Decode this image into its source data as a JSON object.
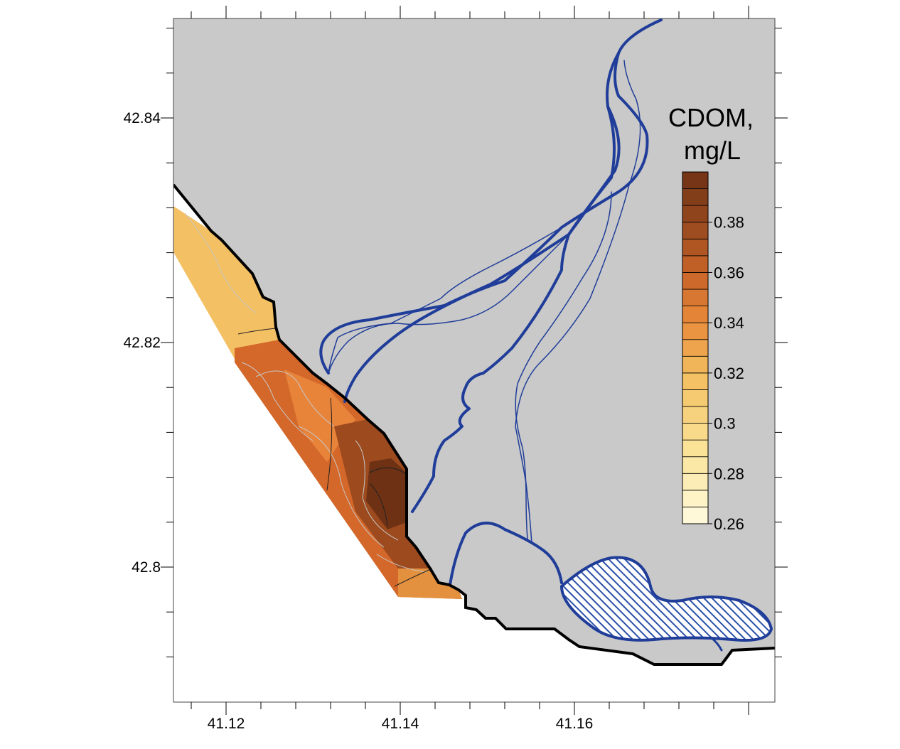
{
  "map": {
    "x_axis": {
      "ticks": [
        {
          "value": 41.12,
          "label": "41.12"
        },
        {
          "value": 41.14,
          "label": "41.14"
        },
        {
          "value": 41.16,
          "label": "41.16"
        }
      ]
    },
    "y_axis": {
      "ticks": [
        {
          "value": 42.84,
          "label": "42.84"
        },
        {
          "value": 42.82,
          "label": "42.82"
        },
        {
          "value": 42.8,
          "label": "42.8"
        }
      ]
    },
    "legend": {
      "title_line1": "CDOM,",
      "title_line2": "mg/L",
      "range": [
        0.26,
        0.4
      ],
      "step": 0.0067,
      "labels": [
        "0.38",
        "0.36",
        "0.34",
        "0.32",
        "0.3",
        "0.28",
        "0.26"
      ],
      "label_values": [
        0.38,
        0.36,
        0.34,
        0.32,
        0.3,
        0.28,
        0.26
      ]
    },
    "colors": {
      "land": "#c9c9c9",
      "sea": "#ffffff",
      "river": "#1f3d99",
      "coast": "#000000",
      "cdom_low": "#fffbe0",
      "cdom_mid": "#e88a3a",
      "cdom_high": "#6e3114"
    }
  }
}
